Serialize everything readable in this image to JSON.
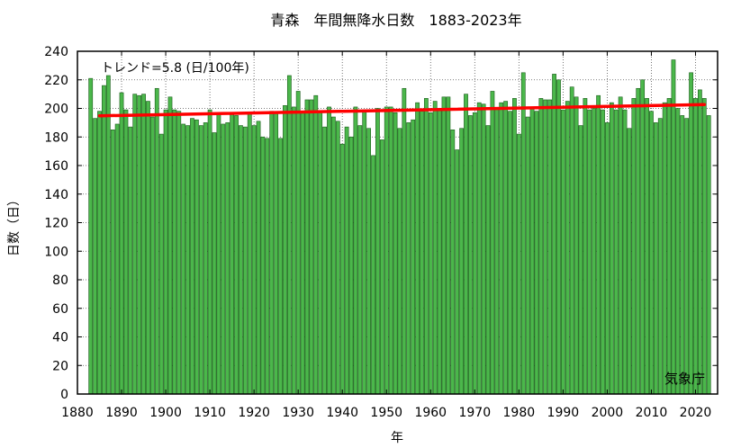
{
  "chart_data": {
    "type": "bar",
    "title": "青森　年間無降水日数　1883-2023年",
    "xlabel": "年",
    "ylabel": "日数（日）",
    "trend_label": "トレンド=5.8 (日/100年)",
    "credit": "気象庁",
    "xlim": [
      1880,
      2025
    ],
    "ylim": [
      0,
      240
    ],
    "x_ticks": [
      "1880",
      "1890",
      "1900",
      "1910",
      "1920",
      "1930",
      "1940",
      "1950",
      "1960",
      "1970",
      "1980",
      "1990",
      "2000",
      "2010",
      "2020"
    ],
    "y_ticks": [
      "0",
      "20",
      "40",
      "60",
      "80",
      "100",
      "120",
      "140",
      "160",
      "180",
      "200",
      "220",
      "240"
    ],
    "start_year": 1883,
    "values": [
      221,
      193,
      198,
      216,
      223,
      185,
      189,
      211,
      199,
      187,
      210,
      209,
      210,
      205,
      194,
      214,
      182,
      199,
      208,
      199,
      198,
      189,
      188,
      193,
      192,
      188,
      190,
      199,
      183,
      196,
      189,
      190,
      196,
      195,
      188,
      187,
      197,
      188,
      191,
      180,
      179,
      198,
      197,
      179,
      202,
      223,
      201,
      212,
      198,
      206,
      206,
      209,
      197,
      187,
      201,
      194,
      191,
      175,
      187,
      180,
      201,
      188,
      199,
      186,
      167,
      200,
      178,
      201,
      201,
      197,
      186,
      214,
      190,
      192,
      204,
      198,
      207,
      197,
      205,
      199,
      208,
      208,
      185,
      171,
      186,
      210,
      195,
      197,
      204,
      203,
      188,
      212,
      200,
      204,
      205,
      198,
      207,
      182,
      225,
      194,
      200,
      198,
      207,
      206,
      206,
      224,
      220,
      199,
      205,
      215,
      208,
      188,
      207,
      199,
      200,
      209,
      199,
      190,
      204,
      199,
      208,
      199,
      186,
      207,
      214,
      220,
      207,
      198,
      190,
      193,
      204,
      207,
      234,
      200,
      195,
      193,
      225,
      207,
      213,
      207,
      195
    ],
    "bar_color": "#4bb74b",
    "bar_edge_color": "#1a5c1a",
    "trend": {
      "x0": 1885,
      "y0": 194.8,
      "x1": 2022,
      "y1": 202.7,
      "color": "#ff0000"
    },
    "grid": true
  }
}
